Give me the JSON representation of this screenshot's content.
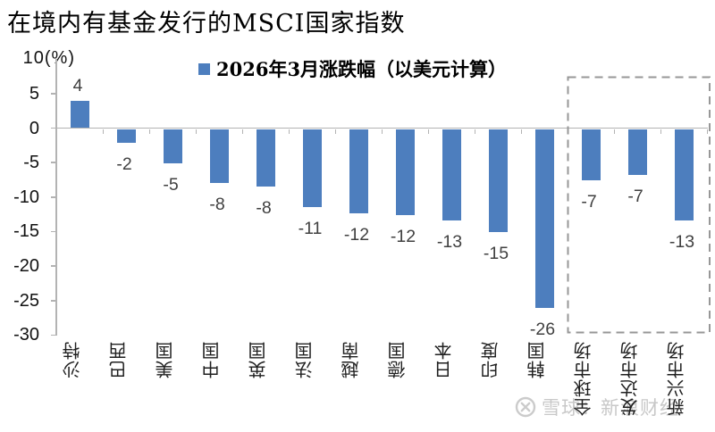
{
  "title": "在境内有基金发行的MSCI国家指数",
  "legend": {
    "label": "2026年3月涨跌幅（以美元计算）",
    "marker": "blue-square-icon"
  },
  "y_axis": {
    "top_label": "10(%)",
    "ticks": [
      "5",
      "0",
      "-5",
      "-10",
      "-15",
      "-20",
      "-25",
      "-30"
    ]
  },
  "watermark": {
    "icon": "xueqiu-snowball-icon",
    "text": "雪球：新浪财经"
  },
  "colors": {
    "bar": "#4d7ebe",
    "axis": "#b3b3b3",
    "value_label": "#404040",
    "dashed_box": "#979797",
    "watermark": "#c8c8c8"
  },
  "chart_data": {
    "type": "bar",
    "title": "在境内有基金发行的MSCI国家指数",
    "legend": [
      "2026年3月涨跌幅（以美元计算）"
    ],
    "legend_position": "top",
    "grid": false,
    "ylabel": "(%)",
    "ylim": [
      -30,
      10
    ],
    "yticks": [
      10,
      5,
      0,
      -5,
      -10,
      -15,
      -20,
      -25,
      -30
    ],
    "categories": [
      "沙特",
      "巴西",
      "美国",
      "中国",
      "英国",
      "法国",
      "越南",
      "德国",
      "日本",
      "印度",
      "韩国",
      "全球市场",
      "发达市场",
      "新兴市场"
    ],
    "values": [
      4,
      -2,
      -5,
      -7.8,
      -8.4,
      -11.3,
      -12.2,
      -12.5,
      -13.2,
      -14.9,
      -25.9,
      -7.4,
      -6.7,
      -13.2
    ],
    "data_labels": [
      "4",
      "-2",
      "-5",
      "-8",
      "-8",
      "-11",
      "-12",
      "-12",
      "-13",
      "-15",
      "-26",
      "-7",
      "-7",
      "-13"
    ],
    "highlight_box_categories": [
      "全球市场",
      "发达市场",
      "新兴市场"
    ]
  }
}
